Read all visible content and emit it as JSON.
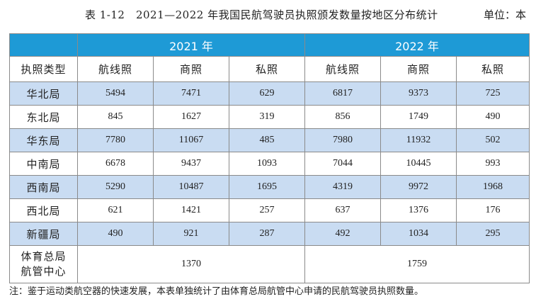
{
  "caption": {
    "title": "表 1-12　2021—2022 年我国民航驾驶员执照颁发数量按地区分布统计",
    "unit": "单位：本"
  },
  "table": {
    "years": [
      "2021 年",
      "2022 年"
    ],
    "col_header": "执照类型",
    "sub_headers": [
      "航线照",
      "商照",
      "私照",
      "航线照",
      "商照",
      "私照"
    ],
    "rows": [
      {
        "name": "华北局",
        "values": [
          "5494",
          "7471",
          "629",
          "6817",
          "9373",
          "725"
        ]
      },
      {
        "name": "东北局",
        "values": [
          "845",
          "1627",
          "319",
          "856",
          "1749",
          "490"
        ]
      },
      {
        "name": "华东局",
        "values": [
          "7780",
          "11067",
          "485",
          "7980",
          "11932",
          "502"
        ]
      },
      {
        "name": "中南局",
        "values": [
          "6678",
          "9437",
          "1093",
          "7044",
          "10445",
          "993"
        ]
      },
      {
        "name": "西南局",
        "values": [
          "5290",
          "10487",
          "1695",
          "4319",
          "9972",
          "1968"
        ]
      },
      {
        "name": "西北局",
        "values": [
          "621",
          "1421",
          "257",
          "637",
          "1376",
          "176"
        ]
      },
      {
        "name": "新疆局",
        "values": [
          "490",
          "921",
          "287",
          "492",
          "1034",
          "295"
        ]
      }
    ],
    "last_row": {
      "name_line1": "体育总局",
      "name_line2": "航管中心",
      "values": [
        "1370",
        "1759"
      ]
    }
  },
  "note": "注：鉴于运动类航空器的快速发展，本表单独统计了由体育总局航管中心申请的民航驾驶员执照数量。",
  "colors": {
    "header_blue": "#1e9ad6",
    "shade_blue": "#c9dcf2"
  }
}
